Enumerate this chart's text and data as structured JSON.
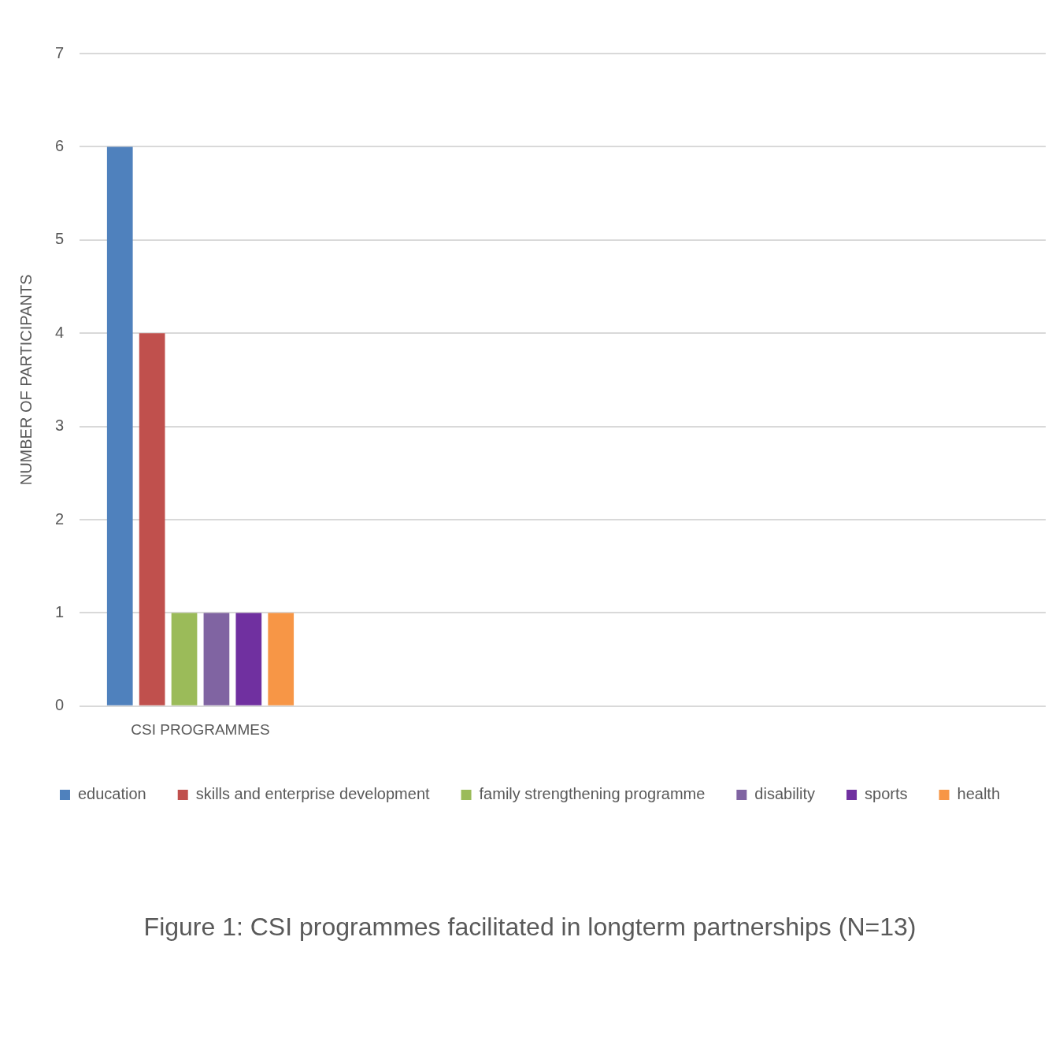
{
  "chart_data": {
    "type": "bar",
    "title": "Figure 1: CSI programmes facilitated in longterm partnerships (N=13)",
    "ylabel": "NUMBER OF PARTICIPANTS",
    "categories": [
      "CSI PROGRAMMES",
      null,
      null,
      null
    ],
    "series": [
      {
        "name": "education",
        "color": "#4f81bd",
        "values": [
          6,
          null,
          null,
          null
        ]
      },
      {
        "name": "skills and enterprise development",
        "color": "#c0504d",
        "values": [
          4,
          null,
          null,
          null
        ]
      },
      {
        "name": "family strengthening programme",
        "color": "#9bbb59",
        "values": [
          1,
          null,
          null,
          null
        ]
      },
      {
        "name": "disability",
        "color": "#8064a2",
        "values": [
          1,
          null,
          null,
          null
        ]
      },
      {
        "name": "sports",
        "color": "#7030a0",
        "values": [
          1,
          null,
          null,
          null
        ]
      },
      {
        "name": "health",
        "color": "#f79646",
        "values": [
          1,
          null,
          null,
          null
        ]
      }
    ],
    "ylim": [
      0,
      7
    ],
    "yticks": [
      0,
      1,
      2,
      3,
      4,
      5,
      6,
      7
    ],
    "grid": "y",
    "legend": "bottom"
  }
}
